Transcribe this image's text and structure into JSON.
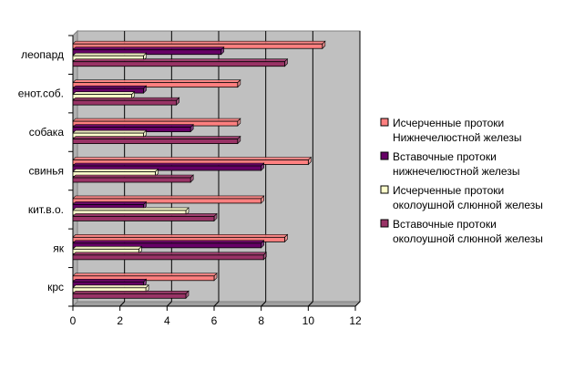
{
  "chart_data": {
    "type": "bar",
    "orientation": "horizontal",
    "categories": [
      "леопард",
      "енот.соб.",
      "собака",
      "свинья",
      "кит.в.о.",
      "як",
      "крс"
    ],
    "series": [
      {
        "name": "Исчерченные протоки Нижнечелюстной железы",
        "legend_lines": [
          "Исчерченные протоки",
          "Нижнечелюстной железы"
        ],
        "color": "#ff8080",
        "values": [
          10.6,
          7.0,
          7.0,
          10.0,
          8.0,
          9.0,
          6.0
        ]
      },
      {
        "name": "Вставочные протоки нижнечелюстной железы",
        "legend_lines": [
          "Вставочные протоки",
          "нижнечелюстной железы"
        ],
        "color": "#660066",
        "values": [
          6.3,
          3.0,
          5.0,
          8.0,
          3.0,
          8.0,
          3.0
        ]
      },
      {
        "name": "Исчерченные протоки околоушной слюнной железы",
        "legend_lines": [
          "Исчерченные протоки",
          "околоушной слюнной железы"
        ],
        "color": "#ffffcc",
        "values": [
          3.0,
          2.5,
          3.0,
          3.5,
          4.8,
          2.8,
          3.1
        ]
      },
      {
        "name": "Вставочные протоки околоушной слюнной железы",
        "legend_lines": [
          "Вставочные протоки",
          "околоушной слюнной железы"
        ],
        "color": "#993366",
        "values": [
          9.0,
          4.4,
          7.0,
          5.0,
          6.0,
          8.1,
          4.8
        ]
      }
    ],
    "xlim": [
      0,
      12
    ],
    "xticks": [
      "0",
      "2",
      "4",
      "6",
      "8",
      "10",
      "12"
    ],
    "grid": true,
    "legend": "right",
    "plot_background": "#c0c0c0",
    "title": "",
    "xlabel": "",
    "ylabel": ""
  }
}
